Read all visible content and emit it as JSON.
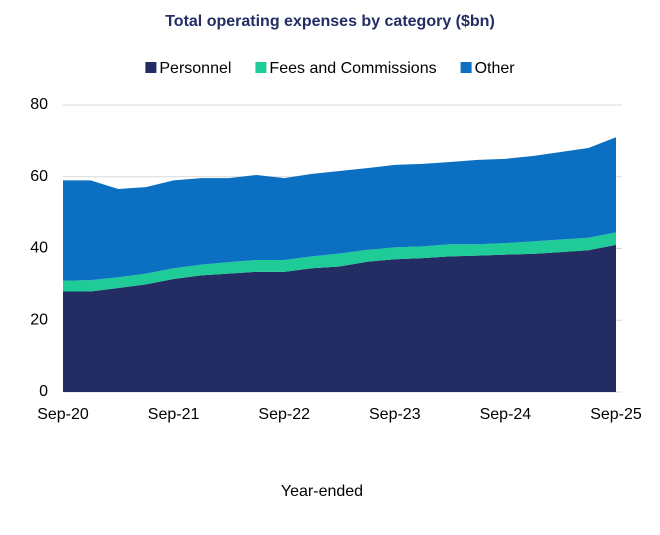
{
  "chart_data": {
    "type": "stacked-area",
    "title": "Total operating expenses by category ($bn)",
    "x_label": "Year-ended",
    "categories": [
      "Sep-20",
      null,
      null,
      null,
      "Sep-21",
      null,
      null,
      null,
      "Sep-22",
      null,
      null,
      null,
      "Sep-23",
      null,
      null,
      null,
      "Sep-24",
      null,
      null,
      null,
      "Sep-25"
    ],
    "series": [
      {
        "name": "Personnel",
        "color": "#232d63",
        "values": [
          28,
          28,
          29,
          30,
          31.5,
          32.5,
          33,
          33.5,
          33.5,
          34.5,
          35,
          36.3,
          37,
          37.3,
          37.8,
          38,
          38.3,
          38.5,
          39,
          39.5,
          41
        ]
      },
      {
        "name": "Fees and Commissions",
        "color": "#1fcb97",
        "values": [
          3,
          3.2,
          3,
          3,
          3,
          3,
          3.2,
          3.3,
          3.3,
          3.3,
          3.6,
          3.3,
          3.3,
          3.3,
          3.4,
          3.2,
          3.2,
          3.5,
          3.5,
          3.5,
          3.5
        ]
      },
      {
        "name": "Other",
        "color": "#0b70c1",
        "values": [
          28,
          27.8,
          24.6,
          24.1,
          24.5,
          24.1,
          23.4,
          23.7,
          22.8,
          23,
          23,
          22.8,
          23,
          23,
          22.9,
          23.5,
          23.5,
          23.8,
          24.4,
          25,
          26.5
        ]
      }
    ],
    "ylim": [
      0,
      80
    ],
    "yticks": [
      0,
      20,
      40,
      60,
      80
    ],
    "grid": true,
    "legend": "top"
  }
}
